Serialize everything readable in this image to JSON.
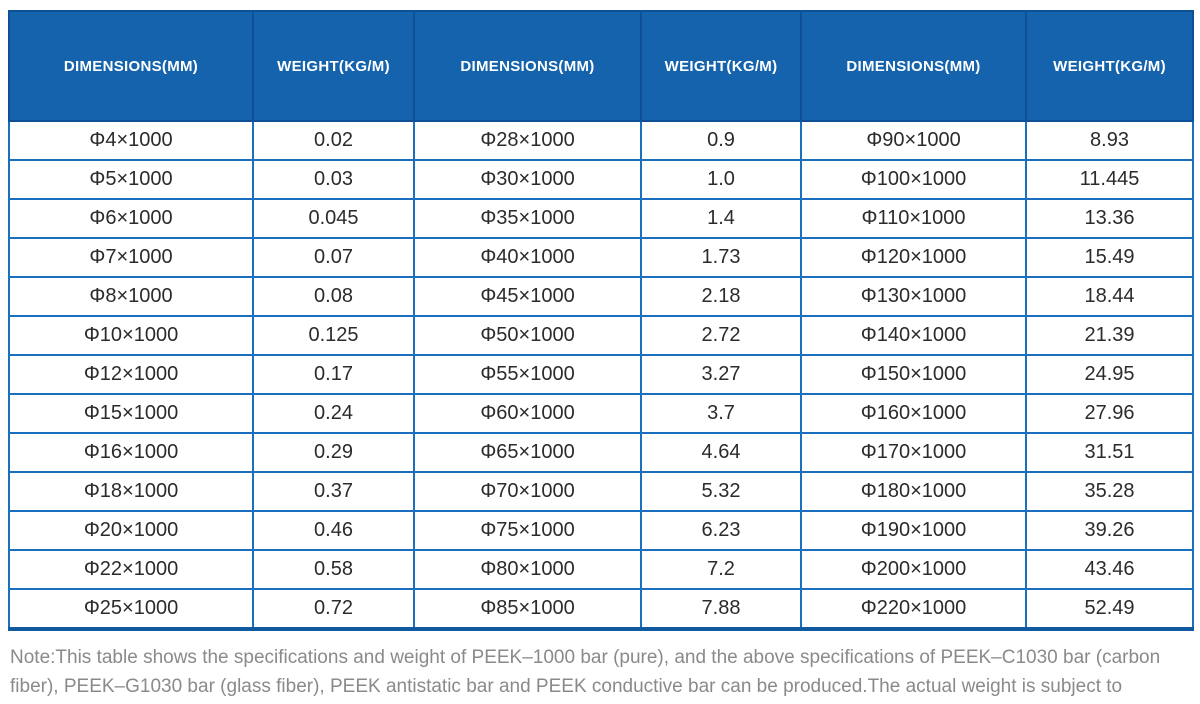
{
  "table": {
    "column_headers": [
      "DIMENSIONS(MM)",
      "WEIGHT(KG/M)",
      "DIMENSIONS(MM)",
      "WEIGHT(KG/M)",
      "DIMENSIONS(MM)",
      "WEIGHT(KG/M)"
    ],
    "rows": [
      [
        "Φ4×1000",
        "0.02",
        "Φ28×1000",
        "0.9",
        "Φ90×1000",
        "8.93"
      ],
      [
        "Φ5×1000",
        "0.03",
        "Φ30×1000",
        "1.0",
        "Φ100×1000",
        "11.445"
      ],
      [
        "Φ6×1000",
        "0.045",
        "Φ35×1000",
        "1.4",
        "Φ110×1000",
        "13.36"
      ],
      [
        "Φ7×1000",
        "0.07",
        "Φ40×1000",
        "1.73",
        "Φ120×1000",
        "15.49"
      ],
      [
        "Φ8×1000",
        "0.08",
        "Φ45×1000",
        "2.18",
        "Φ130×1000",
        "18.44"
      ],
      [
        "Φ10×1000",
        "0.125",
        "Φ50×1000",
        "2.72",
        "Φ140×1000",
        "21.39"
      ],
      [
        "Φ12×1000",
        "0.17",
        "Φ55×1000",
        "3.27",
        "Φ150×1000",
        "24.95"
      ],
      [
        "Φ15×1000",
        "0.24",
        "Φ60×1000",
        "3.7",
        "Φ160×1000",
        "27.96"
      ],
      [
        "Φ16×1000",
        "0.29",
        "Φ65×1000",
        "4.64",
        "Φ170×1000",
        "31.51"
      ],
      [
        "Φ18×1000",
        "0.37",
        "Φ70×1000",
        "5.32",
        "Φ180×1000",
        "35.28"
      ],
      [
        "Φ20×1000",
        "0.46",
        "Φ75×1000",
        "6.23",
        "Φ190×1000",
        "39.26"
      ],
      [
        "Φ22×1000",
        "0.58",
        "Φ80×1000",
        "7.2",
        "Φ200×1000",
        "43.46"
      ],
      [
        "Φ25×1000",
        "0.72",
        "Φ85×1000",
        "7.88",
        "Φ220×1000",
        "52.49"
      ]
    ]
  },
  "note": "Note:This table shows the specifications and weight of PEEK–1000 bar (pure), and the above specifications of PEEK–C1030 bar (carbon fiber), PEEK–G1030 bar (glass fiber), PEEK antistatic bar and PEEK conductive bar can be produced.The actual weight is subject to weighting.",
  "colors": {
    "header_bg": "#1463ac",
    "header_text": "#ffffff",
    "header_divider": "#0d5095",
    "grid_border": "#1a70bd",
    "body_text": "#2b2b2b",
    "note_text": "#8a8a8a"
  }
}
